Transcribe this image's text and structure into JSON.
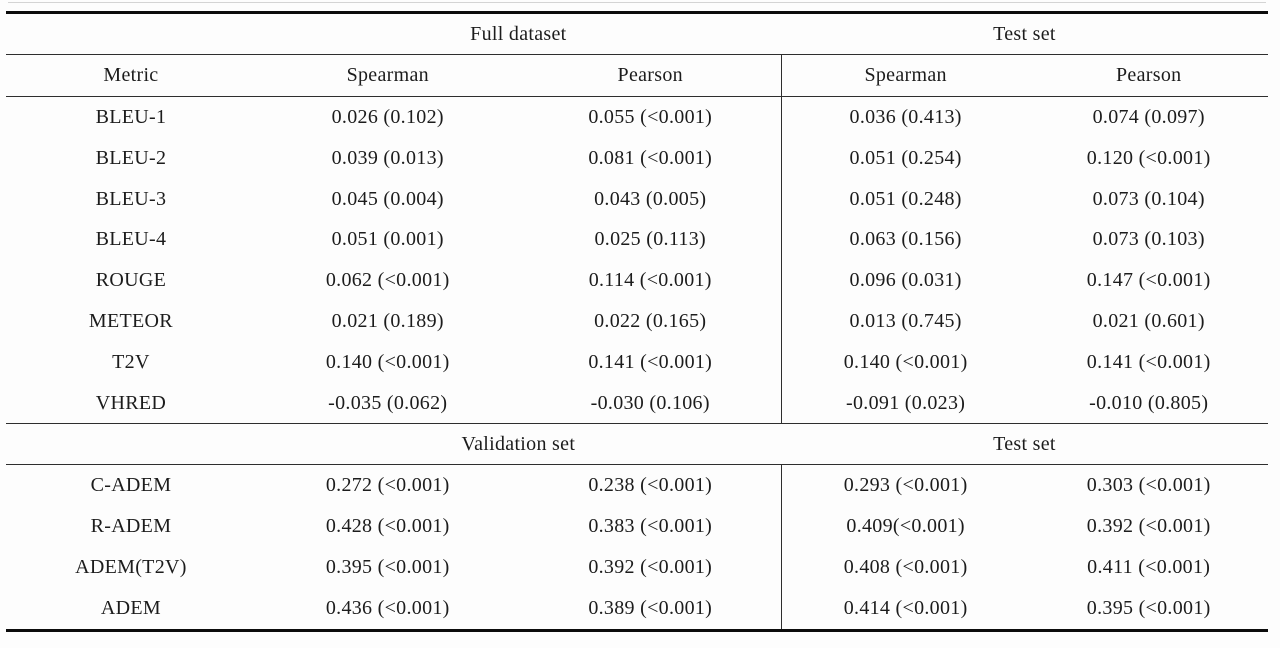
{
  "table": {
    "column_headers": [
      "Metric",
      "Spearman",
      "Pearson",
      "Spearman",
      "Pearson"
    ],
    "sections": [
      {
        "group_headers": [
          "Full dataset",
          "Test set"
        ],
        "rows": [
          {
            "metric": "BLEU-1",
            "values": [
              "0.026 (0.102)",
              "0.055 (<0.001)",
              "0.036 (0.413)",
              "0.074 (0.097)"
            ]
          },
          {
            "metric": "BLEU-2",
            "values": [
              "0.039 (0.013)",
              "0.081 (<0.001)",
              "0.051 (0.254)",
              "0.120 (<0.001)"
            ]
          },
          {
            "metric": "BLEU-3",
            "values": [
              "0.045 (0.004)",
              "0.043 (0.005)",
              "0.051 (0.248)",
              "0.073 (0.104)"
            ]
          },
          {
            "metric": "BLEU-4",
            "values": [
              "0.051 (0.001)",
              "0.025 (0.113)",
              "0.063 (0.156)",
              "0.073 (0.103)"
            ]
          },
          {
            "metric": "ROUGE",
            "values": [
              "0.062 (<0.001)",
              "0.114 (<0.001)",
              "0.096 (0.031)",
              "0.147 (<0.001)"
            ]
          },
          {
            "metric": "METEOR",
            "values": [
              "0.021 (0.189)",
              "0.022 (0.165)",
              "0.013 (0.745)",
              "0.021 (0.601)"
            ]
          },
          {
            "metric": "T2V",
            "values": [
              "0.140 (<0.001)",
              "0.141 (<0.001)",
              "0.140 (<0.001)",
              "0.141 (<0.001)"
            ]
          },
          {
            "metric": "VHRED",
            "values": [
              "-0.035 (0.062)",
              "-0.030 (0.106)",
              "-0.091 (0.023)",
              "-0.010 (0.805)"
            ]
          }
        ]
      },
      {
        "group_headers": [
          "Validation set",
          "Test set"
        ],
        "rows": [
          {
            "metric": "C-ADEM",
            "values": [
              "0.272 (<0.001)",
              "0.238 (<0.001)",
              "0.293 (<0.001)",
              "0.303 (<0.001)"
            ]
          },
          {
            "metric": "R-ADEM",
            "values": [
              "0.428 (<0.001)",
              "0.383 (<0.001)",
              "0.409(<0.001)",
              "0.392 (<0.001)"
            ]
          },
          {
            "metric": "ADEM(T2V)",
            "values": [
              "0.395 (<0.001)",
              "0.392 (<0.001)",
              "0.408 (<0.001)",
              "0.411 (<0.001)"
            ]
          },
          {
            "metric": "ADEM",
            "values": [
              "0.436 (<0.001)",
              "0.389 (<0.001)",
              "0.414 (<0.001)",
              "0.395 (<0.001)"
            ]
          }
        ]
      }
    ]
  }
}
